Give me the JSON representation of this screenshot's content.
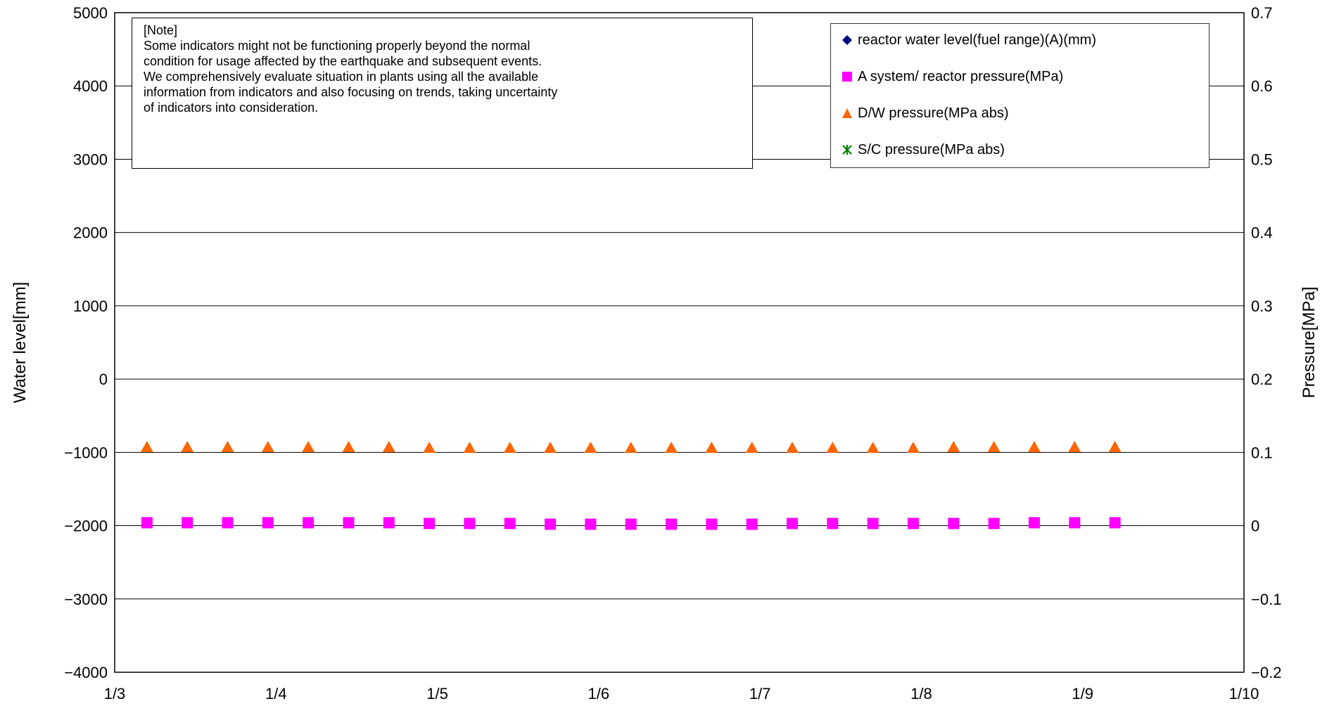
{
  "chart_data": {
    "type": "scatter",
    "title": "",
    "x_tick_labels": [
      "1/3",
      "1/4",
      "1/5",
      "1/6",
      "1/7",
      "1/8",
      "1/9",
      "1/10"
    ],
    "xlim": [
      3,
      10
    ],
    "y_left": {
      "label": "Water level[mm]",
      "range": [
        -4000,
        5000
      ],
      "ticks": [
        "5000",
        "4000",
        "3000",
        "2000",
        "1000",
        "0",
        "−1000",
        "−2000",
        "−3000",
        "−4000"
      ]
    },
    "y_right": {
      "label": "Pressure[MPa]",
      "range": [
        -0.2,
        0.7
      ],
      "ticks": [
        "0.7",
        "0.6",
        "0.5",
        "0.4",
        "0.3",
        "0.2",
        "0.1",
        "0",
        "−0.1",
        "−0.2"
      ]
    },
    "grid": "horizontal",
    "legend_position": "top-right",
    "x": [
      3.2,
      3.45,
      3.7,
      3.95,
      4.2,
      4.45,
      4.7,
      4.95,
      5.2,
      5.45,
      5.7,
      5.95,
      6.2,
      6.45,
      6.7,
      6.95,
      7.2,
      7.45,
      7.7,
      7.95,
      8.2,
      8.45,
      8.7,
      8.95,
      9.2
    ],
    "series": [
      {
        "name": "reactor water level(fuel range)(A)(mm)",
        "axis": "left",
        "marker": "diamond",
        "color": "#000080",
        "values": []
      },
      {
        "name": "A system/ reactor pressure(MPa)",
        "axis": "right",
        "marker": "square",
        "color": "#FF00FF",
        "values": [
          0.004,
          0.004,
          0.004,
          0.004,
          0.004,
          0.004,
          0.004,
          0.003,
          0.003,
          0.003,
          0.002,
          0.002,
          0.002,
          0.002,
          0.002,
          0.002,
          0.003,
          0.003,
          0.003,
          0.003,
          0.003,
          0.003,
          0.004,
          0.004,
          0.004
        ]
      },
      {
        "name": "D/W pressure(MPa abs)",
        "axis": "right",
        "marker": "triangle",
        "color": "#FF6600",
        "values": [
          0.107,
          0.107,
          0.107,
          0.107,
          0.107,
          0.107,
          0.107,
          0.106,
          0.106,
          0.106,
          0.106,
          0.106,
          0.106,
          0.106,
          0.106,
          0.106,
          0.106,
          0.106,
          0.106,
          0.106,
          0.107,
          0.107,
          0.107,
          0.107,
          0.107
        ]
      },
      {
        "name": "S/C pressure(MPa abs)",
        "axis": "right",
        "marker": "asterisk",
        "color": "#008000",
        "values": []
      }
    ],
    "note": {
      "heading": "[Note]",
      "lines": [
        "Some indicators might not be functioning properly beyond the normal",
        "condition for usage affected by the earthquake and subsequent events.",
        "We comprehensively evaluate situation in plants using all the available",
        "information from indicators and also focusing on trends, taking uncertainty",
        "of indicators into consideration."
      ]
    }
  }
}
